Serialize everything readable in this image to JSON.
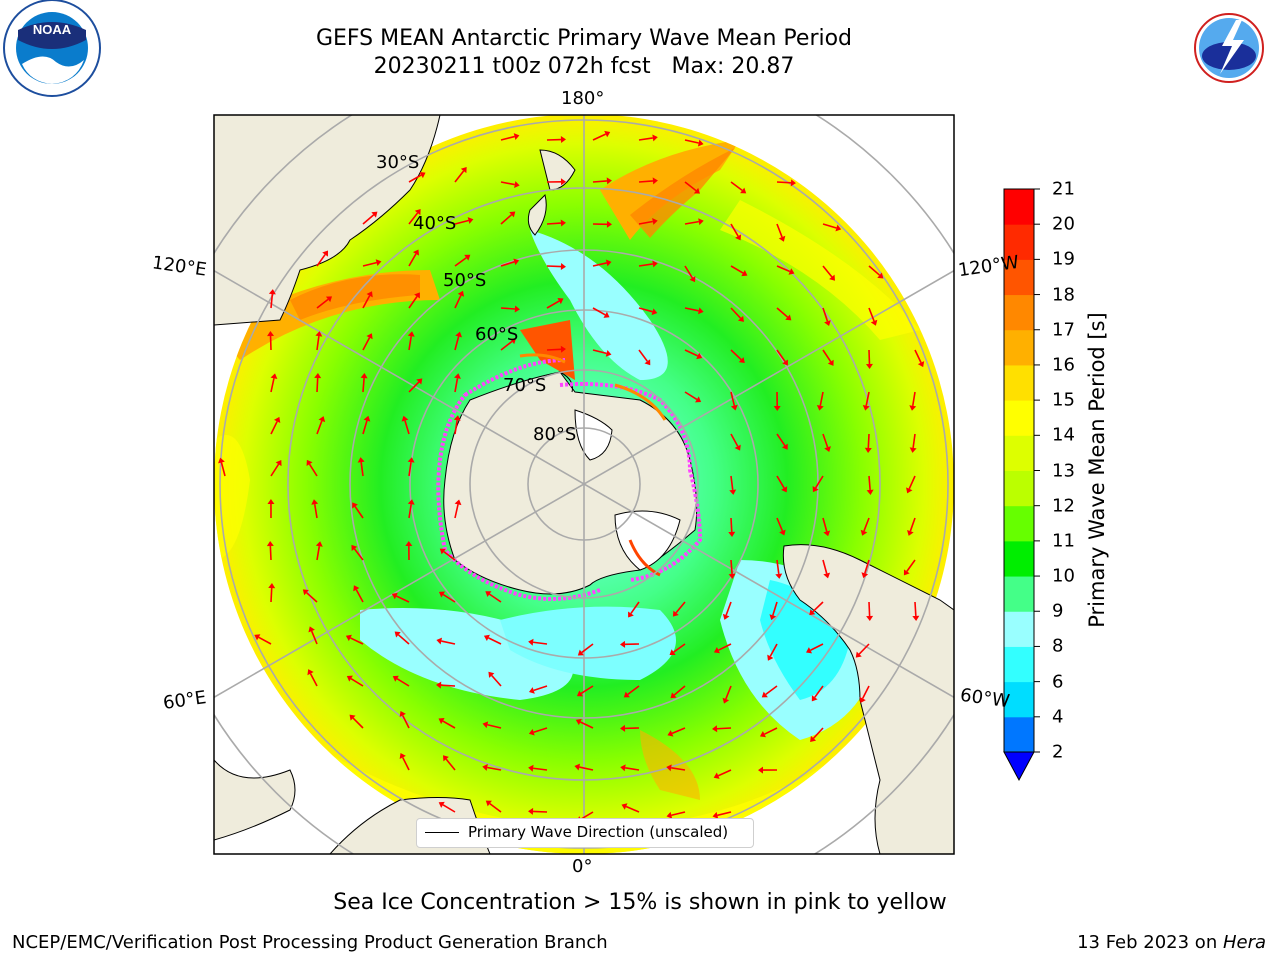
{
  "title": {
    "line1": "GEFS MEAN Antarctic Primary Wave Mean Period",
    "line2": "20230211 t00z 072h fcst   Max: 20.87"
  },
  "map": {
    "projection": "South Polar Stereographic",
    "lon_labels": {
      "top": "180°",
      "bottom": "0°",
      "left_upper": "120°E",
      "left_lower": "60°E",
      "right_upper": "120°W",
      "right_lower": "60°W"
    },
    "lat_labels": [
      "30°S",
      "40°S",
      "50°S",
      "60°S",
      "70°S",
      "80°S"
    ],
    "land_color": "#efecdc",
    "arrow_color": "#ff0000",
    "ice_edge_color": "#ff44ff"
  },
  "legend": {
    "label": "Primary Wave Direction (unscaled)"
  },
  "colorbar": {
    "label": "Primary Wave Mean Period [s]",
    "ticks": [
      "2",
      "4",
      "6",
      "8",
      "9",
      "10",
      "11",
      "12",
      "13",
      "14",
      "15",
      "16",
      "17",
      "18",
      "19",
      "20",
      "21"
    ],
    "colors": [
      "#0077ff",
      "#00ddff",
      "#33ffff",
      "#99ffff",
      "#44ff88",
      "#00ee00",
      "#66ff00",
      "#bbff00",
      "#ddff00",
      "#ffff00",
      "#ffe000",
      "#ffb000",
      "#ff8800",
      "#ff5500",
      "#ff2a00",
      "#ff0000"
    ],
    "extend_color": "#0000ff"
  },
  "footer": {
    "ice_note": "Sea Ice Concentration > 15% is shown in pink to yellow",
    "credit": "NCEP/EMC/Verification Post Processing Product Generation Branch",
    "date": "13 Feb 2023 on ",
    "machine": "Hera"
  },
  "logos": {
    "left": "NOAA",
    "right": "NATIONAL WEATHER SERVICE"
  }
}
